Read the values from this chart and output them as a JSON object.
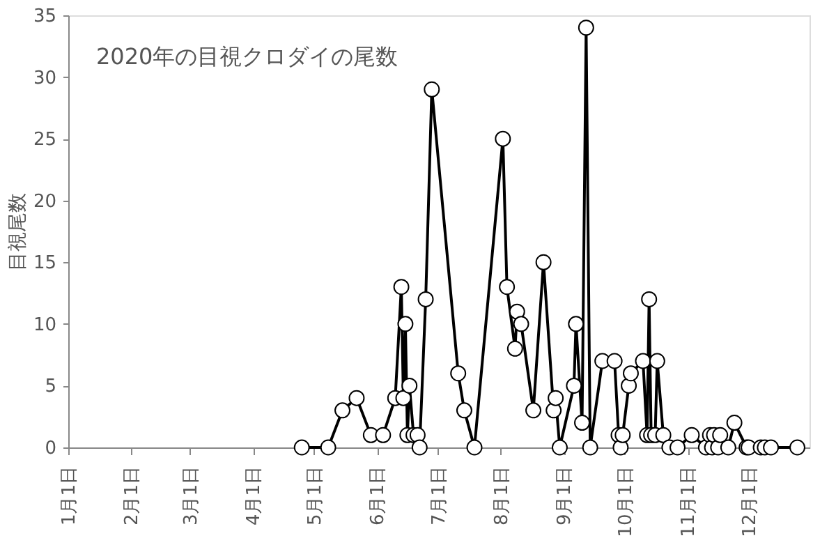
{
  "chart_data": {
    "type": "line",
    "title": "2020年の目視クロダイの尾数",
    "ylabel": "目視尾数",
    "x": [
      "2020-04-25",
      "2020-05-08",
      "2020-05-15",
      "2020-05-22",
      "2020-05-29",
      "2020-06-04",
      "2020-06-10",
      "2020-06-13",
      "2020-06-14",
      "2020-06-15",
      "2020-06-16",
      "2020-06-17",
      "2020-06-19",
      "2020-06-21",
      "2020-06-22",
      "2020-06-25",
      "2020-06-28",
      "2020-07-11",
      "2020-07-14",
      "2020-07-19",
      "2020-08-02",
      "2020-08-04",
      "2020-08-08",
      "2020-08-09",
      "2020-08-11",
      "2020-08-17",
      "2020-08-22",
      "2020-08-27",
      "2020-08-28",
      "2020-08-30",
      "2020-09-06",
      "2020-09-07",
      "2020-09-10",
      "2020-09-12",
      "2020-09-14",
      "2020-09-20",
      "2020-09-26",
      "2020-09-28",
      "2020-09-29",
      "2020-09-30",
      "2020-10-03",
      "2020-10-04",
      "2020-10-10",
      "2020-10-12",
      "2020-10-13",
      "2020-10-14",
      "2020-10-16",
      "2020-10-17",
      "2020-10-20",
      "2020-10-23",
      "2020-10-27",
      "2020-11-03",
      "2020-11-10",
      "2020-11-12",
      "2020-11-13",
      "2020-11-14",
      "2020-11-16",
      "2020-11-17",
      "2020-11-21",
      "2020-11-24",
      "2020-11-30",
      "2020-12-01",
      "2020-12-07",
      "2020-12-09",
      "2020-12-12",
      "2020-12-25"
    ],
    "values": [
      0,
      0,
      3,
      4,
      1,
      1,
      4,
      13,
      4,
      10,
      1,
      5,
      1,
      1,
      0,
      12,
      29,
      6,
      3,
      0,
      25,
      13,
      8,
      11,
      10,
      3,
      15,
      3,
      4,
      0,
      5,
      10,
      2,
      34,
      0,
      7,
      7,
      1,
      0,
      1,
      5,
      6,
      7,
      1,
      12,
      1,
      1,
      7,
      1,
      0,
      0,
      1,
      0,
      1,
      0,
      1,
      0,
      1,
      0,
      2,
      0,
      0,
      0,
      0,
      0,
      0
    ],
    "color": "#000000",
    "marker": "circle",
    "line_style": "solid",
    "grid": false,
    "xlim": [
      "2020-01-01",
      "2020-12-31"
    ],
    "xticks": [
      {
        "value": "2020-01-01",
        "label": "1月1日"
      },
      {
        "value": "2020-02-01",
        "label": "2月1日"
      },
      {
        "value": "2020-03-01",
        "label": "3月1日"
      },
      {
        "value": "2020-04-01",
        "label": "4月1日"
      },
      {
        "value": "2020-05-01",
        "label": "5月1日"
      },
      {
        "value": "2020-06-01",
        "label": "6月1日"
      },
      {
        "value": "2020-07-01",
        "label": "7月1日"
      },
      {
        "value": "2020-08-01",
        "label": "8月1日"
      },
      {
        "value": "2020-09-01",
        "label": "9月1日"
      },
      {
        "value": "2020-10-01",
        "label": "10月1日"
      },
      {
        "value": "2020-11-01",
        "label": "11月1日"
      },
      {
        "value": "2020-12-01",
        "label": "12月1日"
      }
    ],
    "ylim": [
      0,
      35
    ],
    "yticks": [
      0,
      5,
      10,
      15,
      20,
      25,
      30,
      35
    ]
  }
}
